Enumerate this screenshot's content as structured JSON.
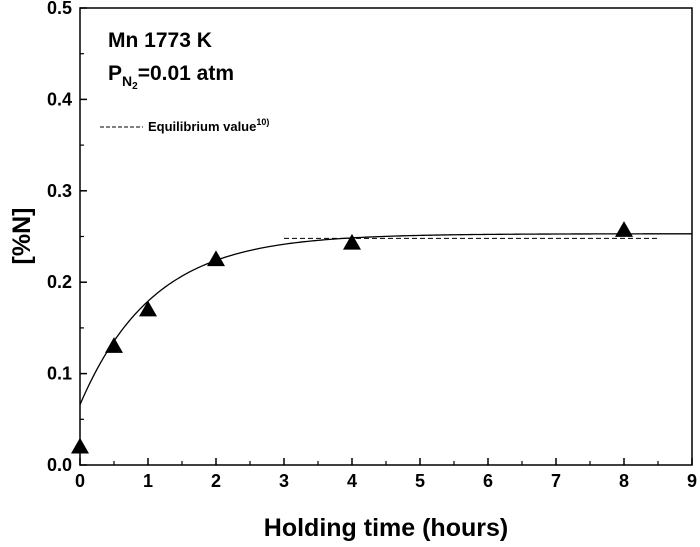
{
  "chart_data": {
    "type": "scatter",
    "title": "",
    "xlabel": "Holding time (hours)",
    "ylabel": "[%N]",
    "xlim": [
      0,
      9
    ],
    "ylim": [
      0.0,
      0.5
    ],
    "x_ticks": [
      "0",
      "1",
      "2",
      "3",
      "4",
      "5",
      "6",
      "7",
      "8",
      "9"
    ],
    "y_ticks": [
      "0.0",
      "0.1",
      "0.2",
      "0.3",
      "0.4",
      "0.5"
    ],
    "annotation": {
      "line1": "Mn 1773 K",
      "line2_prefix": "P",
      "line2_sub": "N",
      "line2_subsub": "2",
      "line2_suffix": "=0.01 atm"
    },
    "series": [
      {
        "marker": "filled-triangle",
        "points": [
          {
            "x": 0,
            "y": 0.02
          },
          {
            "x": 0.5,
            "y": 0.13
          },
          {
            "x": 1,
            "y": 0.17
          },
          {
            "x": 2,
            "y": 0.225
          },
          {
            "x": 4,
            "y": 0.243
          },
          {
            "x": 8,
            "y": 0.257
          }
        ]
      }
    ],
    "fit_curve": {
      "style": "solid",
      "y0": 0.066,
      "y_inf": 0.253,
      "rate": 0.93,
      "x_range": [
        0,
        9
      ]
    },
    "equilibrium_line": {
      "style": "dashed",
      "label": "Equilibrium value",
      "label_sup": "10)",
      "y": 0.248,
      "x_range": [
        3,
        8.5
      ]
    },
    "grid": false,
    "legend_position": "top-left"
  }
}
